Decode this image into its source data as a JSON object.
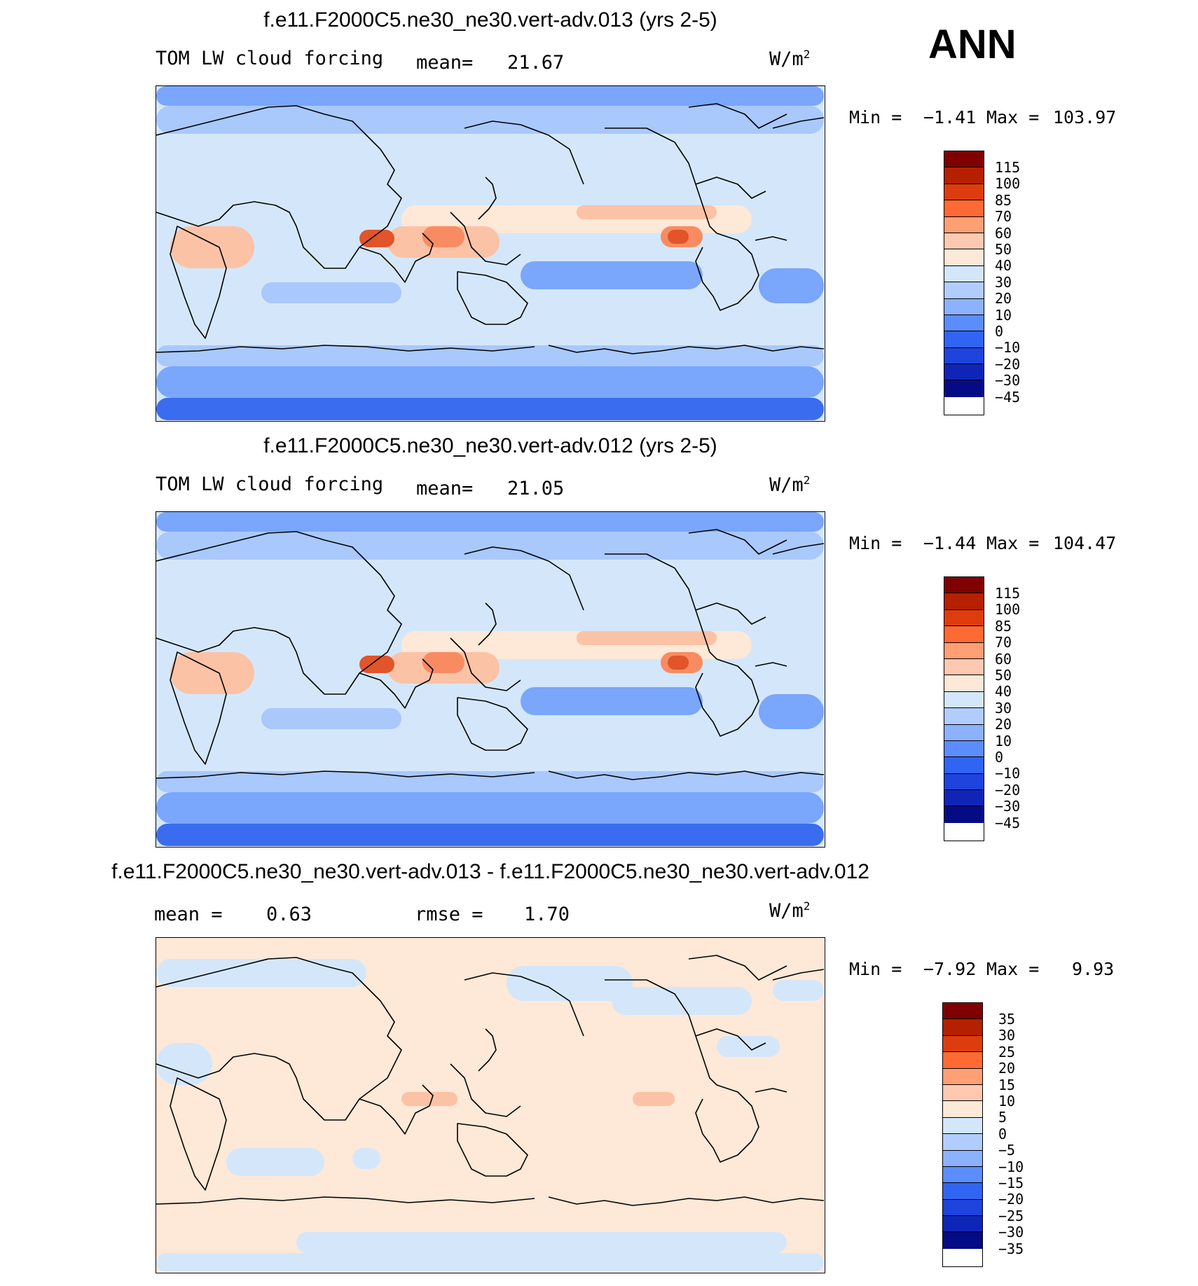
{
  "header": {
    "season": "ANN"
  },
  "panels": [
    {
      "title": "f.e11.F2000C5.ne30_ne30.vert-adv.013 (yrs 2-5)",
      "variable": "TOM LW cloud forcing",
      "stat1_label": "mean=",
      "stat1_value": "21.67",
      "stat2_label": "",
      "stat2_value": "",
      "units": "W/m",
      "units_exp": "2",
      "min_label": "Min =",
      "min_value": "−1.41",
      "max_label": "Max =",
      "max_value": "103.97",
      "colorbar": {
        "colors": [
          "#800000",
          "#b52000",
          "#dd3d0e",
          "#ff6a34",
          "#fe9f74",
          "#fec9b0",
          "#fee8d7",
          "#d4e7fa",
          "#b1cdfd",
          "#8cb2fe",
          "#5b8dfe",
          "#3064f3",
          "#1f43dd",
          "#0f25b7",
          "#050b84"
        ],
        "labels": [
          "115",
          "100",
          "85",
          "70",
          "60",
          "50",
          "40",
          "30",
          "20",
          "10",
          "0",
          "−10",
          "−20",
          "−30",
          "−45"
        ]
      }
    },
    {
      "title": "f.e11.F2000C5.ne30_ne30.vert-adv.012 (yrs 2-5)",
      "variable": "TOM LW cloud forcing",
      "stat1_label": "mean=",
      "stat1_value": "21.05",
      "stat2_label": "",
      "stat2_value": "",
      "units": "W/m",
      "units_exp": "2",
      "min_label": "Min =",
      "min_value": "−1.44",
      "max_label": "Max =",
      "max_value": "104.47",
      "colorbar": {
        "colors": [
          "#800000",
          "#b52000",
          "#dd3d0e",
          "#ff6a34",
          "#fe9f74",
          "#fec9b0",
          "#fee8d7",
          "#d4e7fa",
          "#b1cdfd",
          "#8cb2fe",
          "#5b8dfe",
          "#3064f3",
          "#1f43dd",
          "#0f25b7",
          "#050b84"
        ],
        "labels": [
          "115",
          "100",
          "85",
          "70",
          "60",
          "50",
          "40",
          "30",
          "20",
          "10",
          "0",
          "−10",
          "−20",
          "−30",
          "−45"
        ]
      }
    },
    {
      "title": "f.e11.F2000C5.ne30_ne30.vert-adv.013 - f.e11.F2000C5.ne30_ne30.vert-adv.012",
      "variable": "",
      "stat1_label": "mean =",
      "stat1_value": "0.63",
      "stat2_label": "rmse =",
      "stat2_value": "1.70",
      "units": "W/m",
      "units_exp": "2",
      "min_label": "Min =",
      "min_value": "−7.92",
      "max_label": "Max =",
      "max_value": "9.93",
      "colorbar": {
        "colors": [
          "#800000",
          "#b52000",
          "#dd3d0e",
          "#ff6a34",
          "#fe9f74",
          "#fec9b0",
          "#fee8d7",
          "#d4e7fa",
          "#b1cdfd",
          "#8cb2fe",
          "#5b8dfe",
          "#3064f3",
          "#1f43dd",
          "#0f25b7",
          "#050b84"
        ],
        "labels": [
          "35",
          "30",
          "25",
          "20",
          "15",
          "10",
          "5",
          "0",
          "−5",
          "−10",
          "−15",
          "−20",
          "−25",
          "−30",
          "−35"
        ]
      }
    }
  ],
  "map_colors": {
    "deep_blue": "#3a6cf0",
    "mid_blue": "#7aa6fb",
    "light_blue": "#a9c8fc",
    "pale_blue": "#d4e7fa",
    "cream": "#fee8d7",
    "peach": "#fcc2a6",
    "orange": "#f98b62",
    "red": "#e2542a",
    "coast": "#000000"
  }
}
